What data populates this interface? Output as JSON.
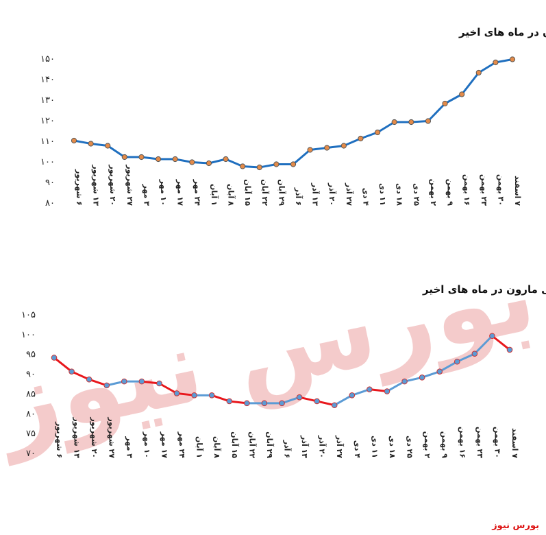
{
  "source_label": "بورس نیوز",
  "watermark": "بورس نیوز",
  "colors": {
    "top_line": "#1f6fbf",
    "top_marker": "#e38b4a",
    "bottom_line_up": "#5b9bd5",
    "bottom_line_down": "#e8171c",
    "bottom_marker": "#5b9bd5",
    "grid": "#d9d9d9",
    "watermark": "#e88e8e"
  },
  "chart_data": [
    {
      "type": "line",
      "title": "روند نرخ پلی پروپیلن پتروشیمی مارون در ماه های اخیر",
      "categories": [
        "۶ شهریور",
        "۱۳ شهریور",
        "۲۰ شهریور",
        "۲۷ شهریور",
        "۳ مهر",
        "۱۰ مهر",
        "۱۷ مهر",
        "۲۴ مهر",
        "۱ آبان",
        "۸ آبان",
        "۱۵ آبان",
        "۲۲ آبان",
        "۲۹ آبان",
        "۶ آذر",
        "۱۳ آذر",
        "۲۰ آذر",
        "۲۷ آذر",
        "۴ دی",
        "۱۱ دی",
        "۱۸ دی",
        "۲۵ دی",
        "۲ بهمن",
        "۹ بهمن",
        "۱۶ بهمن",
        "۲۳ بهمن",
        "۳۰ بهمن",
        "۷ اسفند"
      ],
      "values": [
        110,
        108.5,
        107.5,
        102,
        102,
        101,
        101,
        99.5,
        99,
        101,
        97.5,
        97,
        98.5,
        98.5,
        105.5,
        106.5,
        107.5,
        111,
        114,
        119,
        119,
        119.5,
        128,
        132.5,
        143,
        148,
        149.5
      ],
      "ylim": [
        80,
        150
      ],
      "yticks": [
        "۸۰",
        "۹۰",
        "۱۰۰",
        "۱۱۰",
        "۱۲۰",
        "۱۳۰",
        "۱۴۰",
        "۱۵۰"
      ],
      "ytick_values": [
        80,
        90,
        100,
        110,
        120,
        130,
        140,
        150
      ],
      "grid": false
    },
    {
      "type": "line",
      "title": "روند نرخ پلی اتیلن سنگین پتروشیمی مارون در ماه های اخیر",
      "categories": [
        "۶ شهریور",
        "۱۳ شهریور",
        "۲۰ شهریور",
        "۲۷ شهریور",
        "۳ مهر",
        "۱۰ مهر",
        "۱۷ مهر",
        "۲۴ مهر",
        "۱ آبان",
        "۸ آبان",
        "۱۵ آبان",
        "۲۲ آبان",
        "۲۹ آبان",
        "۶ آذر",
        "۱۳ آذر",
        "۲۰ آذر",
        "۲۷ آذر",
        "۴ دی",
        "۱۱ دی",
        "۱۸ دی",
        "۲۵ دی",
        "۲ بهمن",
        "۹ بهمن",
        "۱۶ بهمن",
        "۲۳ بهمن",
        "۳۰ بهمن",
        "۷ اسفند"
      ],
      "values": [
        94,
        90.5,
        88.5,
        87,
        88,
        88,
        87.5,
        85,
        84.5,
        84.5,
        83,
        82.5,
        82.5,
        82.5,
        84,
        83,
        82,
        84.5,
        86,
        85.5,
        88,
        89,
        90.5,
        93,
        95,
        99.5,
        96
      ],
      "ylim": [
        70,
        105
      ],
      "yticks": [
        "۷۰",
        "۷۵",
        "۸۰",
        "۸۵",
        "۹۰",
        "۹۵",
        "۱۰۰",
        "۱۰۵"
      ],
      "ytick_values": [
        70,
        75,
        80,
        85,
        90,
        95,
        100,
        105
      ],
      "grid": false
    }
  ]
}
